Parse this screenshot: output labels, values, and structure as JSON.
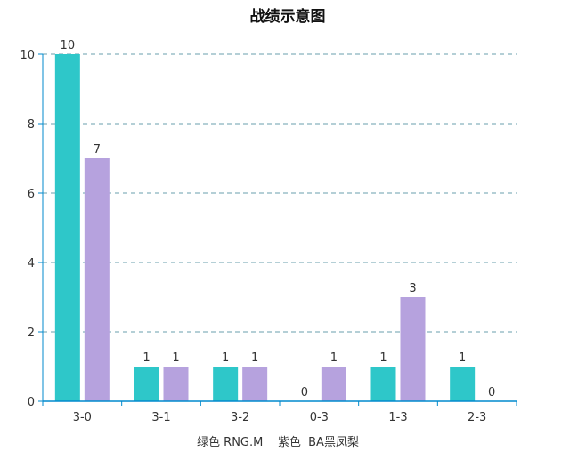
{
  "chart_data": {
    "type": "bar",
    "title": "战绩示意图",
    "xlabel": "绿色 RNG.M    紫色  BA黑凤梨",
    "ylabel": "",
    "categories": [
      "3-0",
      "3-1",
      "3-2",
      "0-3",
      "1-3",
      "2-3"
    ],
    "series": [
      {
        "values": [
          10,
          1,
          1,
          0,
          1,
          1
        ],
        "color": "#2ec7c9"
      },
      {
        "values": [
          7,
          1,
          1,
          1,
          3,
          0
        ],
        "color": "#b6a2de"
      }
    ],
    "ylim": [
      0,
      10
    ],
    "yticks": [
      0,
      2,
      4,
      6,
      8,
      10
    ],
    "grid": true,
    "legend": "none"
  },
  "colors": {
    "axis": "#008acd",
    "grid": "#6a9fad",
    "text": "#333333"
  }
}
